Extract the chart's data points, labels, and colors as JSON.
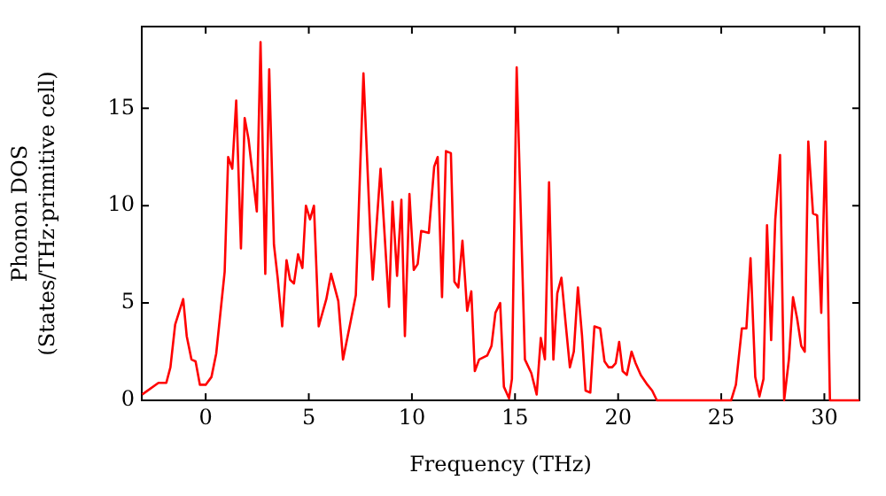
{
  "chart_data": {
    "type": "line",
    "xlabel": "Frequency (THz)",
    "ylabel": "Phonon DOS\n(States/THz·primitive cell)",
    "xlim": [
      -3.1,
      31.7
    ],
    "ylim": [
      0,
      19.2
    ],
    "xticks": [
      0,
      5,
      10,
      15,
      20,
      25,
      30
    ],
    "yticks": [
      0,
      5,
      10,
      15
    ],
    "grid": false,
    "legend": false,
    "marker": "none",
    "line_style": "solid",
    "series": [
      {
        "color": "#ff0000",
        "x": [
          -3.08,
          -2.29,
          -1.91,
          -1.71,
          -1.48,
          -1.09,
          -0.92,
          -0.69,
          -0.49,
          -0.28,
          0,
          0.28,
          0.51,
          0.92,
          1.09,
          1.29,
          1.48,
          1.71,
          1.89,
          2.08,
          2.48,
          2.66,
          2.89,
          3.08,
          3.31,
          3.49,
          3.71,
          3.92,
          4.09,
          4.28,
          4.48,
          4.69,
          4.86,
          5.06,
          5.25,
          5.48,
          5.85,
          6.08,
          6.43,
          6.66,
          7.0,
          7.28,
          7.65,
          8.0,
          8.1,
          8.48,
          8.89,
          9.06,
          9.28,
          9.49,
          9.66,
          9.88,
          10.09,
          10.28,
          10.45,
          10.82,
          11.08,
          11.25,
          11.46,
          11.65,
          11.89,
          12.06,
          12.25,
          12.45,
          12.68,
          12.88,
          13.05,
          13.26,
          13.65,
          13.86,
          14.05,
          14.28,
          14.46,
          14.71,
          14.85,
          15.08,
          15.48,
          15.79,
          16.05,
          16.25,
          16.45,
          16.65,
          16.86,
          17.05,
          17.25,
          17.46,
          17.66,
          17.85,
          18.05,
          18.25,
          18.42,
          18.65,
          18.85,
          19.13,
          19.34,
          19.54,
          19.71,
          19.88,
          20.05,
          20.22,
          20.42,
          20.65,
          20.85,
          21.1,
          21.42,
          21.65,
          21.88,
          25.48,
          25.71,
          26.0,
          26.22,
          26.42,
          26.65,
          26.85,
          27.05,
          27.22,
          27.42,
          27.62,
          27.85,
          28.05,
          28.28,
          28.48,
          28.68,
          28.88,
          29.05,
          29.22,
          29.45,
          29.65,
          29.85,
          30.05,
          30.27,
          31.7
        ],
        "values": [
          0.3,
          0.9,
          0.9,
          1.7,
          3.9,
          5.2,
          3.3,
          2.1,
          2.0,
          0.8,
          0.8,
          1.2,
          2.4,
          6.6,
          12.5,
          11.9,
          15.4,
          7.8,
          14.5,
          13.4,
          9.7,
          18.4,
          6.5,
          17.0,
          8.0,
          6.3,
          3.8,
          7.2,
          6.2,
          6.0,
          7.5,
          6.8,
          10.0,
          9.3,
          10.0,
          3.8,
          5.2,
          6.5,
          5.1,
          2.1,
          3.9,
          5.4,
          16.8,
          8.1,
          6.2,
          11.9,
          4.8,
          10.2,
          6.4,
          10.3,
          3.3,
          10.6,
          6.7,
          7.0,
          8.7,
          8.6,
          12.0,
          12.5,
          5.3,
          12.8,
          12.7,
          6.1,
          5.8,
          8.2,
          4.6,
          5.6,
          1.5,
          2.1,
          2.3,
          2.8,
          4.5,
          5.0,
          0.7,
          0.1,
          1.1,
          17.1,
          2.1,
          1.4,
          0.3,
          3.2,
          2.1,
          11.2,
          2.1,
          5.5,
          6.3,
          3.9,
          1.7,
          2.5,
          5.8,
          3.3,
          0.5,
          0.4,
          3.8,
          3.7,
          2.0,
          1.7,
          1.7,
          1.9,
          3.0,
          1.5,
          1.3,
          2.5,
          1.9,
          1.3,
          0.8,
          0.5,
          0,
          0,
          0.8,
          3.7,
          3.7,
          7.3,
          1.2,
          0.2,
          1.1,
          9.0,
          3.1,
          9.3,
          12.6,
          0,
          2.1,
          5.3,
          4.2,
          2.8,
          2.5,
          13.3,
          9.6,
          9.5,
          4.5,
          13.3,
          0,
          0
        ]
      }
    ]
  }
}
